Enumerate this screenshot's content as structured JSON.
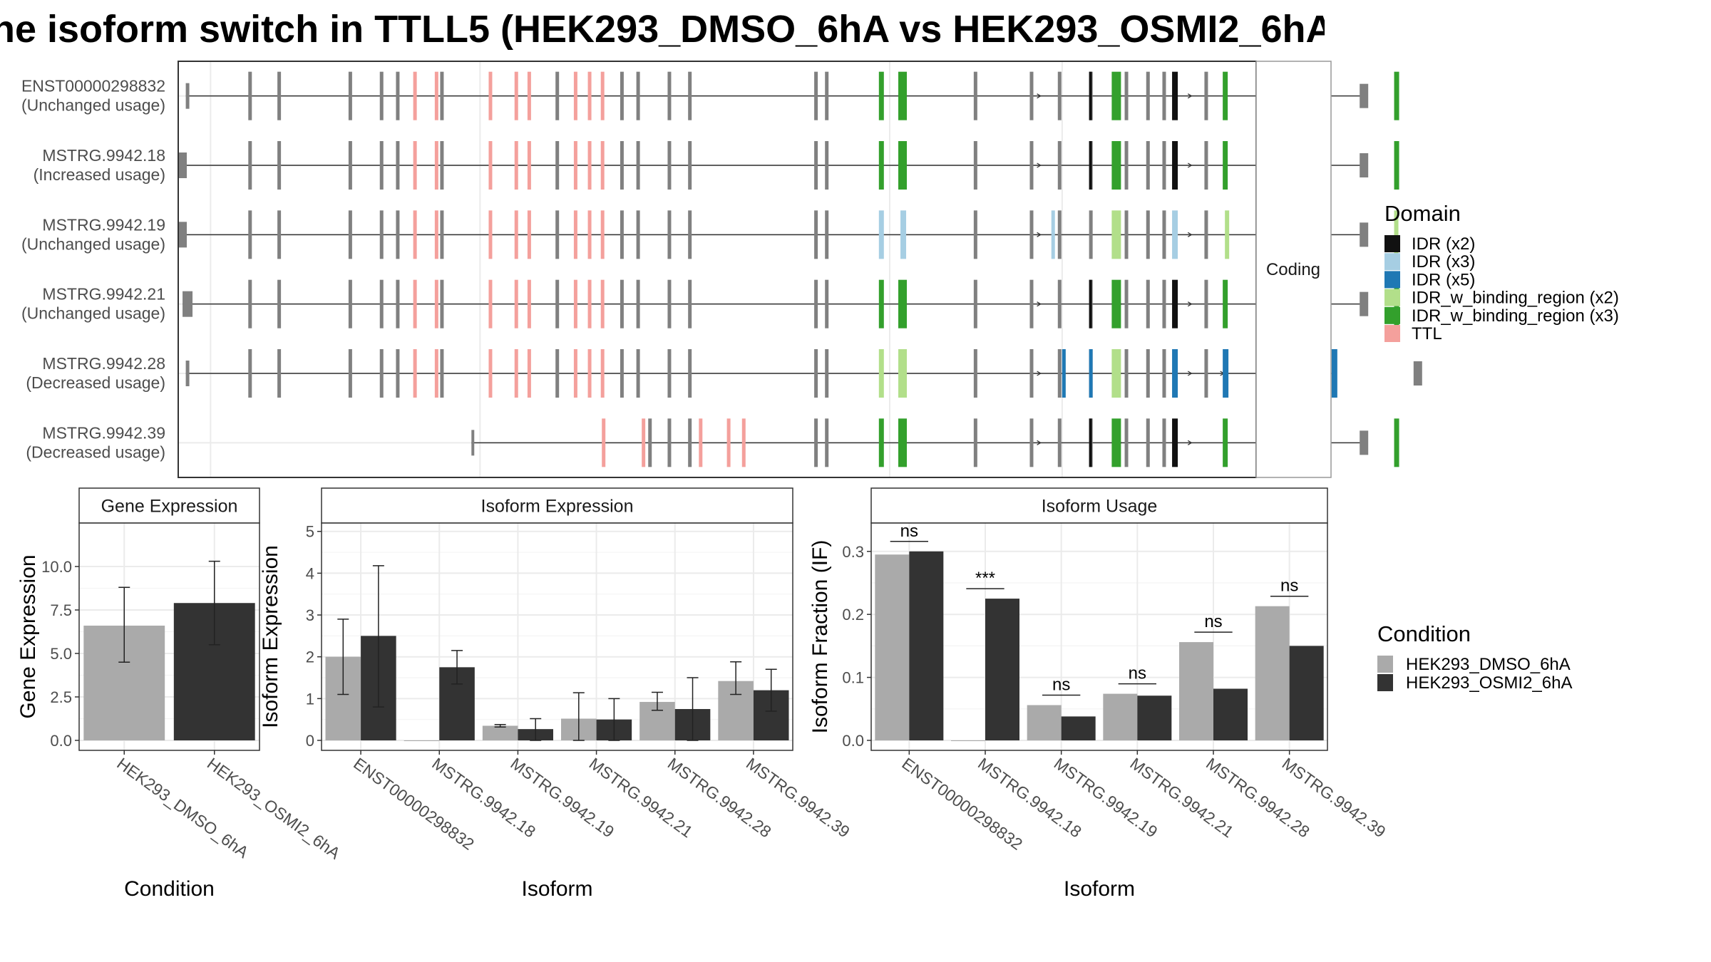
{
  "title": "ne isoform switch in TTLL5 (HEK293_DMSO_6hA vs HEK293_OSMI2_6hA",
  "colors": {
    "exon": "#808080",
    "intron": "#333333",
    "IDR_x2": "#111111",
    "IDR_x3": "#a6cee3",
    "IDR_x5": "#1f78b4",
    "IDR_w_binding_region_x2": "#b2df8a",
    "IDR_w_binding_region_x3": "#33a02c",
    "TTL": "#f4a09c",
    "DMSO": "#aaaaaa",
    "OSMI2": "#333333"
  },
  "structure": {
    "facet_label": "Coding",
    "legend_title": "Domain",
    "legend_items": [
      {
        "label": "IDR (x2)",
        "color_key": "IDR_x2"
      },
      {
        "label": "IDR (x3)",
        "color_key": "IDR_x3"
      },
      {
        "label": "IDR (x5)",
        "color_key": "IDR_x5"
      },
      {
        "label": "IDR_w_binding_region (x2)",
        "color_key": "IDR_w_binding_region_x2"
      },
      {
        "label": "IDR_w_binding_region (x3)",
        "color_key": "IDR_w_binding_region_x3"
      },
      {
        "label": "TTL",
        "color_key": "TTL"
      }
    ],
    "isoforms": [
      {
        "id": "ENST00000298832",
        "usage": "(Unchanged usage)",
        "domain_scheme": "A",
        "start": 0.007
      },
      {
        "id": "MSTRG.9942.18",
        "usage": "(Increased usage)",
        "domain_scheme": "A",
        "start": 0.0
      },
      {
        "id": "MSTRG.9942.19",
        "usage": "(Unchanged usage)",
        "domain_scheme": "B",
        "start": 0.0
      },
      {
        "id": "MSTRG.9942.21",
        "usage": "(Unchanged usage)",
        "domain_scheme": "A",
        "start": 0.004
      },
      {
        "id": "MSTRG.9942.28",
        "usage": "(Decreased usage)",
        "domain_scheme": "C",
        "start": 0.007
      },
      {
        "id": "MSTRG.9942.39",
        "usage": "(Decreased usage)",
        "domain_scheme": "A",
        "start": 0.272
      }
    ]
  },
  "condition_legend": {
    "title": "Condition",
    "items": [
      {
        "label": "HEK293_DMSO_6hA",
        "color_key": "DMSO"
      },
      {
        "label": "HEK293_OSMI2_6hA",
        "color_key": "OSMI2"
      }
    ]
  },
  "chart_data": [
    {
      "type": "bar",
      "panel": "Gene Expression",
      "title": "Gene Expression",
      "xlabel": "Condition",
      "ylabel": "Gene Expression",
      "ylim": [
        0,
        12.5
      ],
      "yticks": [
        "0.0",
        "2.5",
        "5.0",
        "7.5",
        "10.0"
      ],
      "categories": [
        "HEK293_DMSO_6hA",
        "HEK293_OSMI2_6hA"
      ],
      "values": [
        6.6,
        7.9
      ],
      "error_low": [
        4.5,
        5.5
      ],
      "error_high": [
        8.8,
        10.3
      ]
    },
    {
      "type": "bar",
      "panel": "Isoform Expression",
      "title": "Isoform Expression",
      "xlabel": "Isoform",
      "ylabel": "Isoform Expression",
      "ylim": [
        0,
        5.2
      ],
      "yticks": [
        "0",
        "1",
        "2",
        "3",
        "4",
        "5"
      ],
      "categories": [
        "ENST00000298832",
        "MSTRG.9942.18",
        "MSTRG.9942.19",
        "MSTRG.9942.21",
        "MSTRG.9942.28",
        "MSTRG.9942.39"
      ],
      "series": [
        {
          "name": "HEK293_DMSO_6hA",
          "values": [
            2.0,
            0.0,
            0.35,
            0.52,
            0.92,
            1.42
          ],
          "error_low": [
            1.1,
            0.0,
            0.32,
            0.0,
            0.72,
            1.1
          ],
          "error_high": [
            2.9,
            0.0,
            0.38,
            1.14,
            1.15,
            1.88
          ]
        },
        {
          "name": "HEK293_OSMI2_6hA",
          "values": [
            2.5,
            1.75,
            0.27,
            0.5,
            0.75,
            1.2
          ],
          "error_low": [
            0.8,
            1.35,
            0.0,
            0.0,
            0.0,
            0.7
          ],
          "error_high": [
            4.18,
            2.15,
            0.52,
            1.0,
            1.5,
            1.7
          ]
        }
      ]
    },
    {
      "type": "bar",
      "panel": "Isoform Usage",
      "title": "Isoform Usage",
      "xlabel": "Isoform",
      "ylabel": "Isoform Fraction (IF)",
      "ylim": [
        0,
        0.345
      ],
      "yticks": [
        "0.0",
        "0.1",
        "0.2",
        "0.3"
      ],
      "categories": [
        "ENST00000298832",
        "MSTRG.9942.18",
        "MSTRG.9942.19",
        "MSTRG.9942.21",
        "MSTRG.9942.28",
        "MSTRG.9942.39"
      ],
      "series": [
        {
          "name": "HEK293_DMSO_6hA",
          "values": [
            0.295,
            0.0,
            0.056,
            0.074,
            0.156,
            0.213
          ]
        },
        {
          "name": "HEK293_OSMI2_6hA",
          "values": [
            0.3,
            0.225,
            0.038,
            0.071,
            0.082,
            0.15
          ]
        }
      ],
      "significance": [
        "ns",
        "***",
        "ns",
        "ns",
        "ns",
        "ns"
      ]
    }
  ]
}
